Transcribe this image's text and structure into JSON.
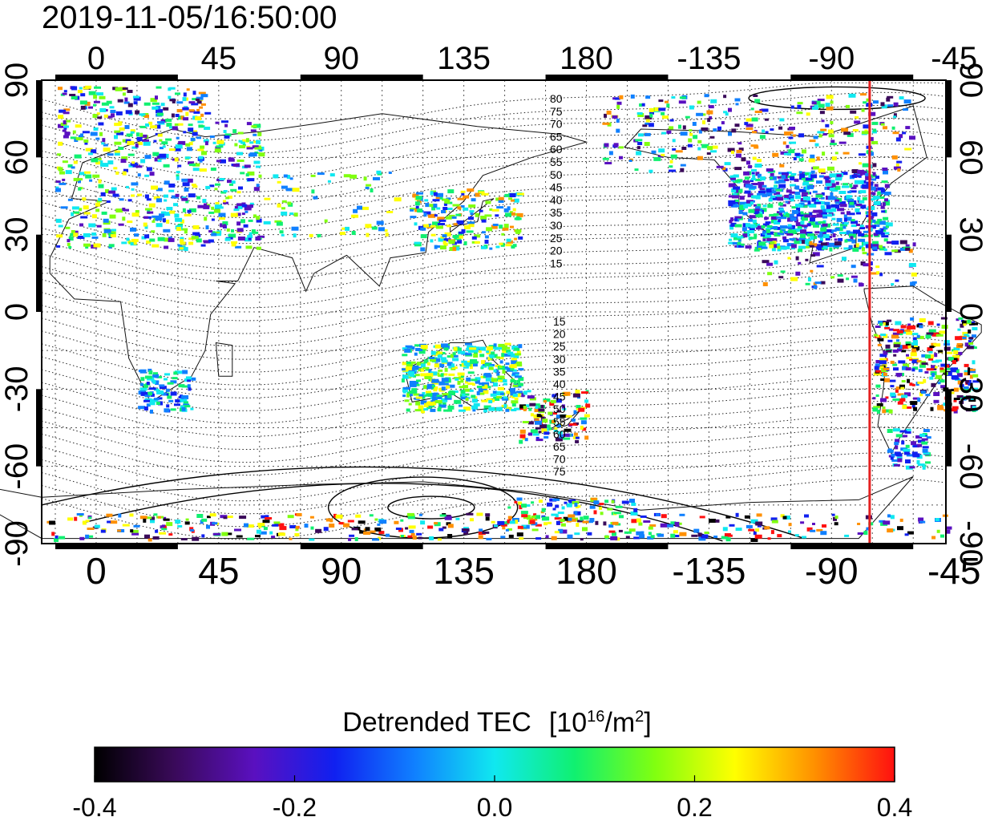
{
  "header": {
    "timestamp": "2019-11-05/16:50:00"
  },
  "map": {
    "x_ticks": [
      {
        "label": "0",
        "lon": 0
      },
      {
        "label": "45",
        "lon": 45
      },
      {
        "label": "90",
        "lon": 90
      },
      {
        "label": "135",
        "lon": 135
      },
      {
        "label": "180",
        "lon": 180
      },
      {
        "label": "-135",
        "lon": 225
      },
      {
        "label": "-90",
        "lon": 270
      },
      {
        "label": "-45",
        "lon": 315
      }
    ],
    "y_ticks": [
      {
        "label": "90",
        "lat": 90
      },
      {
        "label": "60",
        "lat": 60
      },
      {
        "label": "30",
        "lat": 30
      },
      {
        "label": "0",
        "lat": 0
      },
      {
        "label": "-30",
        "lat": -30
      },
      {
        "label": "-60",
        "lat": -60
      },
      {
        "label": "-90",
        "lat": -90
      }
    ],
    "lon_range": [
      -20,
      312
    ],
    "lat_range": [
      -90,
      90
    ],
    "marker_lon_deg": -76,
    "marker_color": "#e52020",
    "contour_labels_north": [
      "80",
      "75",
      "70",
      "65",
      "60",
      "55",
      "50",
      "45",
      "40",
      "35",
      "30",
      "25",
      "20",
      "15"
    ],
    "contour_labels_south": [
      "15",
      "20",
      "25",
      "30",
      "35",
      "40",
      "45",
      "50",
      "55",
      "60",
      "65",
      "70",
      "75"
    ]
  },
  "colorbar": {
    "title_text": "Detrended TEC",
    "title_unit_base": "[10",
    "title_unit_exp": "16",
    "title_unit_mid": "/m",
    "title_unit_exp2": "2",
    "title_unit_end": "]",
    "ticks": [
      "-0.4",
      "-0.2",
      "0.0",
      "0.2",
      "0.4"
    ],
    "range": [
      -0.4,
      0.4
    ],
    "colors": [
      "#000000",
      "#3a0a5a",
      "#5a10c0",
      "#1020f0",
      "#1080ff",
      "#10e8f0",
      "#10f070",
      "#80ff10",
      "#ffff00",
      "#ff9000",
      "#ff1010"
    ]
  }
}
